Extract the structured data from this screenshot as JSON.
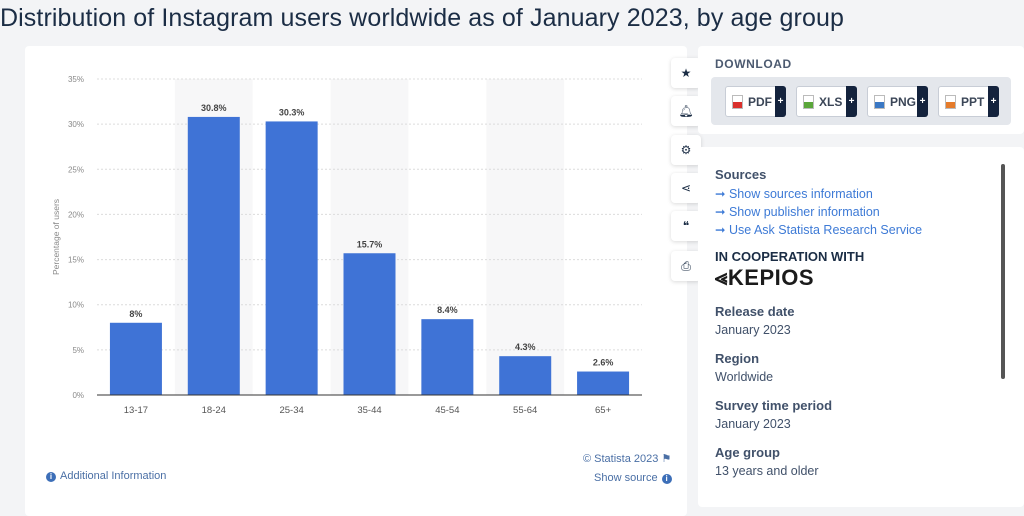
{
  "title": "Distribution of Instagram users worldwide as of January 2023, by age group",
  "chart_data": {
    "type": "bar",
    "categories": [
      "13-17",
      "18-24",
      "25-34",
      "35-44",
      "45-54",
      "55-64",
      "65+"
    ],
    "values": [
      8,
      30.8,
      30.3,
      15.7,
      8.4,
      4.3,
      2.6
    ],
    "data_labels": [
      "8%",
      "30.8%",
      "30.3%",
      "15.7%",
      "8.4%",
      "4.3%",
      "2.6%"
    ],
    "title": "",
    "xlabel": "",
    "ylabel": "Percentage of users",
    "ylim": [
      0,
      35
    ],
    "yticks": [
      "0%",
      "5%",
      "10%",
      "15%",
      "20%",
      "25%",
      "30%",
      "35%"
    ],
    "grid": true,
    "bar_color": "#3f73d6"
  },
  "chart_footer": {
    "credit": "© Statista 2023",
    "show_source": "Show source",
    "additional_info": "Additional Information"
  },
  "tools": [
    "star-icon",
    "bell-icon",
    "gear-icon",
    "share-icon",
    "quote-icon",
    "print-icon"
  ],
  "download": {
    "heading": "DOWNLOAD",
    "buttons": [
      {
        "label": "PDF",
        "color": "#d9302c"
      },
      {
        "label": "XLS",
        "color": "#5aa63a"
      },
      {
        "label": "PNG",
        "color": "#3a78c4"
      },
      {
        "label": "PPT",
        "color": "#e57b2a"
      }
    ],
    "plus": "+"
  },
  "meta": {
    "sources_heading": "Sources",
    "links": [
      "Show sources information",
      "Show publisher information",
      "Use Ask Statista Research Service"
    ],
    "cooperation_heading": "IN COOPERATION WITH",
    "cooperation_logo": "KEPIOS",
    "release_date_label": "Release date",
    "release_date": "January 2023",
    "region_label": "Region",
    "region": "Worldwide",
    "survey_label": "Survey time period",
    "survey": "January 2023",
    "age_label": "Age group",
    "age": "13 years and older"
  }
}
